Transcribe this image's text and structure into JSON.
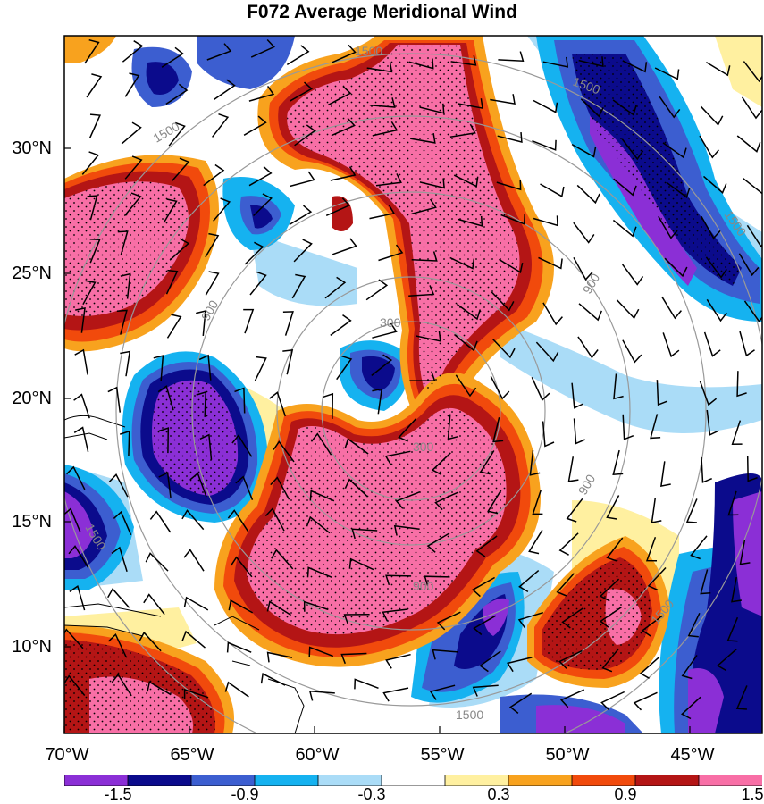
{
  "title": "F072 Average Meridional Wind",
  "lat_ticks": [
    "30°N",
    "25°N",
    "20°N",
    "15°N",
    "10°N"
  ],
  "lon_ticks": [
    "70°W",
    "65°W",
    "60°W",
    "55°W",
    "50°W",
    "45°W"
  ],
  "colorbar": {
    "labels": [
      "-1.5",
      "-0.9",
      "-0.3",
      "0.3",
      "0.9",
      "1.5"
    ],
    "colors": [
      "#8b2fd6",
      "#0b0b8c",
      "#3c5ed0",
      "#15b2f0",
      "#aadcf7",
      "#ffffff",
      "#fff0a0",
      "#f8a21e",
      "#f14a0c",
      "#b41515",
      "#f86fa6"
    ]
  },
  "range_ring_labels": [
    "300",
    "300",
    "900",
    "900",
    "900",
    "900",
    "1500",
    "1500",
    "1500",
    "1500",
    "1500",
    "1500",
    "1500"
  ]
}
